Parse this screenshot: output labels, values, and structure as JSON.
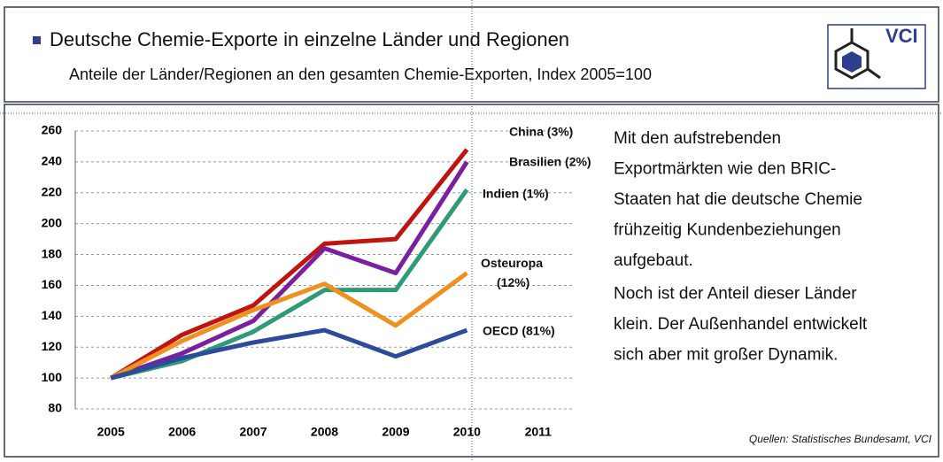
{
  "header": {
    "title": "Deutsche Chemie-Exporte in einzelne Länder und Regionen",
    "subtitle": "Anteile der Länder/Regionen an den gesamten Chemie-Exporten, Index 2005=100",
    "logo": "VCI"
  },
  "chart_data": {
    "type": "line",
    "categories": [
      "2005",
      "2006",
      "2007",
      "2008",
      "2009",
      "2010",
      "2011"
    ],
    "series": [
      {
        "name": "China (3%)",
        "color": "#c0150f",
        "values": [
          100,
          128,
          147,
          187,
          190,
          248,
          null
        ]
      },
      {
        "name": "Brasilien (2%)",
        "color": "#7a1fa0",
        "values": [
          100,
          116,
          137,
          184,
          168,
          240,
          null
        ]
      },
      {
        "name": "Indien (1%)",
        "color": "#2e9b77",
        "values": [
          100,
          111,
          130,
          157,
          157,
          222,
          null
        ]
      },
      {
        "name": "Osteuropa (12%)",
        "color": "#f0901e",
        "values": [
          100,
          124,
          144,
          161,
          134,
          168,
          null
        ]
      },
      {
        "name": "OECD (81%)",
        "color": "#2e4b9b",
        "values": [
          100,
          113,
          123,
          131,
          114,
          131,
          null
        ]
      }
    ],
    "ylim": [
      80,
      260
    ],
    "yticks": [
      80,
      100,
      120,
      140,
      160,
      180,
      200,
      220,
      240,
      260
    ],
    "grid": true
  },
  "text": {
    "paragraphs": [
      [
        "Mit den aufstrebenden",
        "Exportmärkten wie den BRIC-",
        "Staaten hat die deutsche Chemie",
        "frühzeitig Kundenbeziehungen",
        "aufgebaut."
      ],
      [
        "Noch ist der Anteil dieser Länder",
        "klein. Der Außenhandel entwickelt",
        "sich aber mit großer Dynamik."
      ]
    ]
  },
  "source": "Quellen: Statistisches Bundesamt, VCI"
}
